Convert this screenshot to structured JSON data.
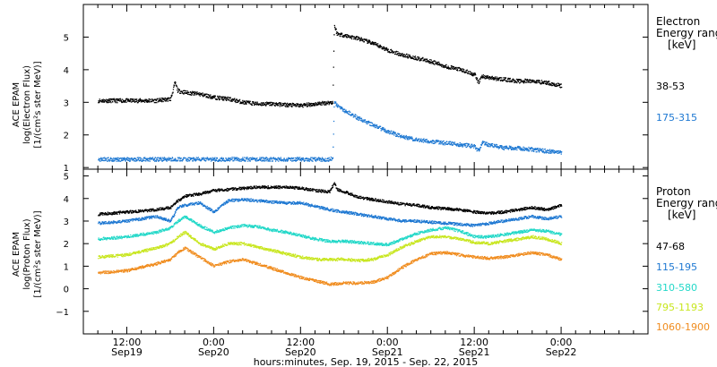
{
  "x_axis": {
    "tick_labels": [
      {
        "time": "12:00",
        "date": "Sep19",
        "h": 12
      },
      {
        "time": "0:00",
        "date": "Sep20",
        "h": 24
      },
      {
        "time": "12:00",
        "date": "Sep20",
        "h": 36
      },
      {
        "time": "0:00",
        "date": "Sep21",
        "h": 48
      },
      {
        "time": "12:00",
        "date": "Sep21",
        "h": 60
      },
      {
        "time": "0:00",
        "date": "Sep22",
        "h": 72
      }
    ],
    "title": "hours:minutes, Sep. 19, 2015 - Sep. 22, 2015",
    "range_hours": [
      6,
      84
    ]
  },
  "panels": {
    "electron": {
      "ylabel_lines": [
        "ACE EPAM",
        "log(Electron Flux)",
        "[1/(cm²s ster MeV)]"
      ],
      "yticks": [
        1,
        2,
        3,
        4,
        5
      ],
      "ylim": [
        0.95,
        6.0
      ],
      "legend_title": [
        "Electron",
        "Energy ranges",
        "[keV]"
      ],
      "legend": [
        {
          "label": "38-53",
          "color": "#000000"
        },
        {
          "label": "175-315",
          "color": "#1e78d2"
        }
      ]
    },
    "proton": {
      "ylabel_lines": [
        "ACE EPAM",
        "log(Proton Flux)",
        "[1/(cm²s ster MeV)]"
      ],
      "yticks": [
        -1,
        0,
        1,
        2,
        3,
        4,
        5
      ],
      "ylim": [
        -2.0,
        5.3
      ],
      "legend_title": [
        "Proton",
        "Energy ranges",
        "[keV]"
      ],
      "legend": [
        {
          "label": "47-68",
          "color": "#000000"
        },
        {
          "label": "115-195",
          "color": "#1e78d2"
        },
        {
          "label": "310-580",
          "color": "#22d8c8"
        },
        {
          "label": "795-1193",
          "color": "#c8e61e"
        },
        {
          "label": "1060-1900",
          "color": "#f08c1e"
        }
      ]
    }
  },
  "chart_data": [
    {
      "type": "scatter",
      "x_units": "hours since Sep 19 00:00 UT",
      "ylabel": "log(Electron Flux)",
      "series": [
        {
          "name": "38-53",
          "color": "#000000",
          "x": [
            8,
            10,
            12,
            14,
            16,
            18,
            18.6,
            19,
            20,
            22,
            24,
            26,
            28,
            30,
            32,
            34,
            36,
            38,
            40.4,
            40.6,
            41,
            42,
            44,
            46,
            48,
            50,
            52,
            54,
            56,
            58,
            60,
            60.5,
            61,
            62,
            64,
            66,
            68,
            70,
            72
          ],
          "y": [
            3.05,
            3.05,
            3.05,
            3.05,
            3.05,
            3.1,
            3.6,
            3.35,
            3.3,
            3.25,
            3.15,
            3.1,
            3.0,
            2.95,
            2.95,
            2.92,
            2.9,
            2.95,
            3.0,
            5.35,
            5.1,
            5.05,
            4.95,
            4.8,
            4.6,
            4.45,
            4.35,
            4.25,
            4.1,
            4.0,
            3.85,
            3.6,
            3.8,
            3.75,
            3.7,
            3.65,
            3.65,
            3.6,
            3.5
          ]
        },
        {
          "name": "175-315",
          "color": "#1e78d2",
          "x": [
            8,
            12,
            16,
            20,
            24,
            28,
            32,
            36,
            40,
            40.4,
            40.6,
            41,
            42,
            44,
            46,
            48,
            50,
            52,
            54,
            56,
            58,
            60,
            60.5,
            61,
            62,
            64,
            66,
            68,
            70,
            72
          ],
          "y": [
            1.25,
            1.25,
            1.25,
            1.25,
            1.25,
            1.25,
            1.25,
            1.25,
            1.25,
            1.3,
            3.0,
            2.9,
            2.75,
            2.5,
            2.3,
            2.1,
            1.95,
            1.85,
            1.8,
            1.75,
            1.7,
            1.65,
            1.5,
            1.75,
            1.7,
            1.6,
            1.6,
            1.55,
            1.5,
            1.45
          ]
        }
      ]
    },
    {
      "type": "scatter",
      "x_units": "hours since Sep 19 00:00 UT",
      "ylabel": "log(Proton Flux)",
      "series": [
        {
          "name": "47-68",
          "color": "#000000",
          "x": [
            8,
            12,
            16,
            18,
            19,
            20,
            22,
            24,
            26,
            28,
            30,
            32,
            34,
            36,
            38,
            40,
            40.6,
            41,
            42,
            44,
            46,
            48,
            50,
            52,
            54,
            56,
            58,
            60,
            62,
            64,
            66,
            68,
            70,
            72
          ],
          "y": [
            3.3,
            3.4,
            3.5,
            3.6,
            3.9,
            4.1,
            4.2,
            4.35,
            4.4,
            4.45,
            4.5,
            4.5,
            4.5,
            4.45,
            4.35,
            4.3,
            4.7,
            4.4,
            4.3,
            4.05,
            3.95,
            3.85,
            3.75,
            3.7,
            3.6,
            3.55,
            3.5,
            3.4,
            3.35,
            3.4,
            3.5,
            3.6,
            3.5,
            3.7
          ]
        },
        {
          "name": "115-195",
          "color": "#1e78d2",
          "x": [
            8,
            12,
            16,
            18,
            19,
            20,
            22,
            24,
            25,
            26,
            28,
            30,
            32,
            34,
            36,
            38,
            40,
            42,
            44,
            46,
            48,
            50,
            52,
            54,
            56,
            58,
            60,
            62,
            64,
            66,
            68,
            70,
            72
          ],
          "y": [
            2.9,
            3.0,
            3.2,
            3.0,
            3.6,
            3.7,
            3.8,
            3.4,
            3.7,
            3.9,
            3.95,
            3.9,
            3.85,
            3.8,
            3.8,
            3.65,
            3.5,
            3.4,
            3.3,
            3.2,
            3.1,
            3.0,
            3.0,
            2.95,
            2.9,
            2.85,
            2.8,
            2.9,
            3.0,
            3.1,
            3.2,
            3.1,
            3.2
          ]
        },
        {
          "name": "310-580",
          "color": "#22d8c8",
          "x": [
            8,
            12,
            16,
            18,
            19,
            20,
            22,
            24,
            26,
            28,
            30,
            32,
            34,
            36,
            38,
            40,
            42,
            44,
            46,
            48,
            50,
            52,
            54,
            56,
            58,
            60,
            62,
            64,
            66,
            68,
            70,
            72
          ],
          "y": [
            2.2,
            2.3,
            2.5,
            2.7,
            3.0,
            3.2,
            2.8,
            2.5,
            2.7,
            2.8,
            2.75,
            2.6,
            2.5,
            2.35,
            2.2,
            2.1,
            2.1,
            2.05,
            2.0,
            1.95,
            2.2,
            2.45,
            2.6,
            2.7,
            2.55,
            2.3,
            2.3,
            2.4,
            2.5,
            2.6,
            2.55,
            2.4
          ]
        },
        {
          "name": "795-1193",
          "color": "#c8e61e",
          "x": [
            8,
            12,
            16,
            18,
            19,
            20,
            22,
            24,
            26,
            28,
            30,
            32,
            34,
            36,
            38,
            40,
            42,
            44,
            46,
            48,
            50,
            52,
            54,
            56,
            58,
            60,
            62,
            64,
            66,
            68,
            70,
            72
          ],
          "y": [
            1.4,
            1.5,
            1.8,
            2.0,
            2.3,
            2.5,
            2.0,
            1.75,
            2.0,
            2.0,
            1.85,
            1.7,
            1.55,
            1.4,
            1.3,
            1.3,
            1.3,
            1.25,
            1.3,
            1.5,
            1.85,
            2.1,
            2.3,
            2.3,
            2.2,
            2.05,
            2.0,
            2.1,
            2.2,
            2.3,
            2.2,
            2.0
          ]
        },
        {
          "name": "1060-1900",
          "color": "#f08c1e",
          "x": [
            8,
            12,
            16,
            18,
            19,
            20,
            22,
            24,
            26,
            28,
            30,
            32,
            34,
            36,
            38,
            40,
            42,
            44,
            46,
            48,
            50,
            52,
            54,
            56,
            58,
            60,
            62,
            64,
            66,
            68,
            70,
            72
          ],
          "y": [
            0.7,
            0.8,
            1.1,
            1.3,
            1.6,
            1.8,
            1.4,
            1.0,
            1.2,
            1.3,
            1.1,
            0.9,
            0.7,
            0.5,
            0.35,
            0.2,
            0.25,
            0.25,
            0.3,
            0.5,
            0.95,
            1.3,
            1.55,
            1.6,
            1.5,
            1.4,
            1.35,
            1.4,
            1.5,
            1.6,
            1.5,
            1.3
          ]
        }
      ]
    }
  ]
}
